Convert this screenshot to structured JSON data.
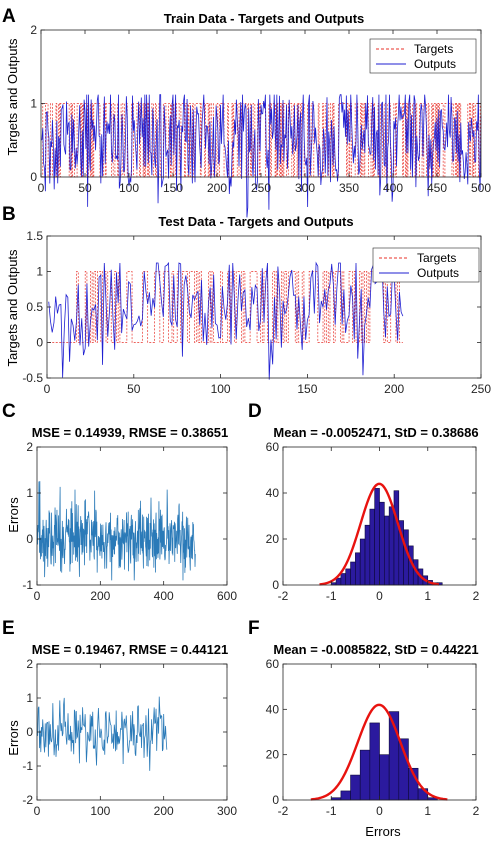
{
  "panels": [
    {
      "letter": "A",
      "title": "Train Data - Targets and Outputs",
      "ylabel": "Targets and Outputs",
      "xlabel": "",
      "xlim": [
        0,
        500
      ],
      "ylim": [
        0,
        2
      ],
      "xticks": [
        "0",
        "50",
        "100",
        "150",
        "200",
        "250",
        "300",
        "350",
        "400",
        "450",
        "500"
      ],
      "yticks": [
        "0",
        "1",
        "2"
      ],
      "legend": [
        "Targets",
        "Outputs"
      ],
      "chart_data": {
        "type": "line",
        "n_points": 500,
        "series": [
          {
            "name": "Targets",
            "style": "dashed",
            "color": "#e8312a",
            "values_description": "binary 0/1"
          },
          {
            "name": "Outputs",
            "style": "solid",
            "color": "#1f1fd1"
          }
        ],
        "xlim": [
          0,
          500
        ],
        "ylim": [
          0,
          2
        ]
      }
    },
    {
      "letter": "B",
      "title": "Test Data - Targets and Outputs",
      "ylabel": "Targets and Outputs",
      "xlabel": "",
      "xlim": [
        0,
        250
      ],
      "ylim": [
        -0.5,
        1.5
      ],
      "xticks": [
        "0",
        "50",
        "100",
        "150",
        "200",
        "250"
      ],
      "yticks": [
        "-0.5",
        "0",
        "0.5",
        "1",
        "1.5"
      ],
      "legend": [
        "Targets",
        "Outputs"
      ],
      "chart_data": {
        "type": "line",
        "n_points": 205,
        "series": [
          {
            "name": "Targets",
            "style": "dashed",
            "color": "#e8312a"
          },
          {
            "name": "Outputs",
            "style": "solid",
            "color": "#1f1fd1"
          }
        ],
        "xlim": [
          0,
          250
        ],
        "ylim": [
          -0.5,
          1.5
        ]
      }
    },
    {
      "letter": "C",
      "title": "MSE = 0.14939, RMSE = 0.38651",
      "ylabel": "Errors",
      "xlabel": "",
      "xlim": [
        0,
        600
      ],
      "ylim": [
        -1,
        2
      ],
      "xticks": [
        "0",
        "200",
        "400",
        "600"
      ],
      "yticks": [
        "-1",
        "0",
        "1",
        "2"
      ],
      "chart_data": {
        "type": "line",
        "n_points": 500,
        "color": "#2a7ab8",
        "xlim": [
          0,
          600
        ],
        "ylim": [
          -1,
          2
        ]
      }
    },
    {
      "letter": "D",
      "title": "Mean = -0.0052471, StD = 0.38686",
      "ylabel": "",
      "xlabel": "",
      "xlim": [
        -2,
        2
      ],
      "ylim": [
        0,
        60
      ],
      "xticks": [
        "-2",
        "-1",
        "0",
        "1",
        "2"
      ],
      "yticks": [
        "0",
        "20",
        "40",
        "60"
      ],
      "chart_data": {
        "type": "bar",
        "bin_centers": [
          -0.95,
          -0.85,
          -0.75,
          -0.65,
          -0.55,
          -0.45,
          -0.35,
          -0.25,
          -0.15,
          -0.05,
          0.05,
          0.15,
          0.25,
          0.35,
          0.45,
          0.55,
          0.65,
          0.75,
          0.85,
          0.95,
          1.05,
          1.15,
          1.25
        ],
        "values": [
          1,
          3,
          5,
          7,
          10,
          14,
          20,
          26,
          33,
          42,
          36,
          30,
          34,
          41,
          28,
          24,
          17,
          11,
          7,
          4,
          2,
          1,
          1
        ],
        "bin_width": 0.1,
        "fit": {
          "mean": -0.0052471,
          "std": 0.38686,
          "peak": 44,
          "color": "#e8130f"
        },
        "xlim": [
          -2,
          2
        ],
        "ylim": [
          0,
          60
        ]
      }
    },
    {
      "letter": "E",
      "title": "MSE = 0.19467, RMSE = 0.44121",
      "ylabel": "Errors",
      "xlabel": "",
      "xlim": [
        0,
        300
      ],
      "ylim": [
        -2,
        2
      ],
      "xticks": [
        "0",
        "100",
        "200",
        "300"
      ],
      "yticks": [
        "-2",
        "-1",
        "0",
        "1",
        "2"
      ],
      "chart_data": {
        "type": "line",
        "n_points": 205,
        "color": "#2a7ab8",
        "xlim": [
          0,
          300
        ],
        "ylim": [
          -2,
          2
        ]
      }
    },
    {
      "letter": "F",
      "title": "Mean = -0.0085822, StD = 0.44221",
      "ylabel": "",
      "xlabel": "Errors",
      "xlim": [
        -2,
        2
      ],
      "ylim": [
        0,
        60
      ],
      "xticks": [
        "-2",
        "-1",
        "0",
        "1",
        "2"
      ],
      "yticks": [
        "0",
        "20",
        "40",
        "60"
      ],
      "chart_data": {
        "type": "bar",
        "bin_centers": [
          -0.9,
          -0.7,
          -0.5,
          -0.3,
          -0.1,
          0.1,
          0.3,
          0.5,
          0.7,
          0.9,
          1.1
        ],
        "values": [
          1,
          4,
          11,
          22,
          34,
          20,
          39,
          27,
          14,
          5,
          1
        ],
        "bin_width": 0.2,
        "fit": {
          "mean": -0.0085822,
          "std": 0.44221,
          "peak": 42,
          "color": "#e8130f"
        },
        "xlim": [
          -2,
          2
        ],
        "ylim": [
          0,
          60
        ]
      }
    }
  ],
  "colors": {
    "targets": "#e8312a",
    "outputs": "#1f1fd1",
    "errors_line": "#2a7ab8",
    "hist_fill": "#2b1a9e",
    "hist_edge": "#0c0838",
    "fit_curve": "#e8130f"
  },
  "panel_c_errors_label": "Errors",
  "panel_e_errors_label": "Errors"
}
